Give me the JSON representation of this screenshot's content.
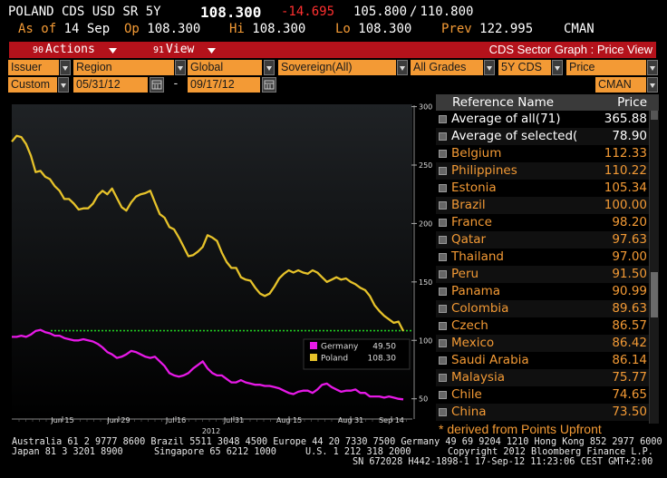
{
  "header": {
    "ticker": "POLAND CDS USD SR 5Y",
    "last": "108.300",
    "change": "-14.695",
    "bid": "105.800",
    "ask": "110.800",
    "asof_label": "As of",
    "asof_date": "14 Sep",
    "op_label": "Op",
    "op_value": "108.300",
    "hi_label": "Hi",
    "hi_value": "108.300",
    "lo_label": "Lo",
    "lo_value": "108.300",
    "prev_label": "Prev",
    "prev_value": "122.995",
    "source": "CMAN"
  },
  "actionbar": {
    "actions_num": "90",
    "actions_label": "Actions",
    "view_num": "91",
    "view_label": "View",
    "title": "CDS Sector Graph : Price View"
  },
  "selectors": {
    "issuer": "Issuer",
    "region": "Region",
    "global": "Global",
    "sovereign": "Sovereign(All)",
    "grades": "All Grades",
    "tenor": "5Y CDS",
    "price": "Price",
    "custom": "Custom",
    "start_date": "05/31/12",
    "date_sep": "-",
    "end_date": "09/17/12",
    "source": "CMAN"
  },
  "table": {
    "col_name": "Reference Name",
    "col_price": "Price",
    "rows": [
      {
        "name": "Average of all(71)",
        "price": "365.88",
        "color": "#ffffff"
      },
      {
        "name": "Average of selected(",
        "price": "78.90",
        "color": "#ffffff"
      },
      {
        "name": "Belgium",
        "price": "112.33",
        "color": "#f39a35"
      },
      {
        "name": "Philippines",
        "price": "110.22",
        "color": "#f39a35"
      },
      {
        "name": "Estonia",
        "price": "105.34",
        "color": "#f39a35"
      },
      {
        "name": "Brazil",
        "price": "100.00",
        "color": "#f39a35"
      },
      {
        "name": "France",
        "price": "98.20",
        "color": "#f39a35"
      },
      {
        "name": "Qatar",
        "price": "97.63",
        "color": "#f39a35"
      },
      {
        "name": "Thailand",
        "price": "97.00",
        "color": "#f39a35"
      },
      {
        "name": "Peru",
        "price": "91.50",
        "color": "#f39a35"
      },
      {
        "name": "Panama",
        "price": "90.99",
        "color": "#f39a35"
      },
      {
        "name": "Colombia",
        "price": "89.63",
        "color": "#f39a35"
      },
      {
        "name": "Czech",
        "price": "86.57",
        "color": "#f39a35"
      },
      {
        "name": "Mexico",
        "price": "86.42",
        "color": "#f39a35"
      },
      {
        "name": "Saudi Arabia",
        "price": "86.14",
        "color": "#f39a35"
      },
      {
        "name": "Malaysia",
        "price": "75.77",
        "color": "#f39a35"
      },
      {
        "name": "Chile",
        "price": "74.65",
        "color": "#f39a35"
      },
      {
        "name": "China",
        "price": "73.50",
        "color": "#f39a35"
      }
    ],
    "note": "* derived from Points Upfront"
  },
  "footer": {
    "line1": "Australia 61 2 9777 8600 Brazil 5511 3048 4500 Europe 44 20 7330 7500 Germany 49 69 9204 1210 Hong Kong 852 2977 6000",
    "line2_left": "Japan 81 3 3201 8900",
    "line2_mid": "Singapore 65 6212 1000",
    "line2_us": "U.S. 1 212 318 2000",
    "line2_right": "Copyright 2012 Bloomberg Finance L.P.",
    "line3": "SN 672028 H442-1898-1 17-Sep-12 11:23:06 CEST GMT+2:00"
  },
  "colors": {
    "orange": "#f39a35",
    "red_bar": "#b4121b",
    "poland": "#e6c22a",
    "germany": "#e619e6",
    "ref_line": "#22cc22"
  },
  "chart_data": {
    "type": "line",
    "x_tick_labels": [
      "Jun 15",
      "Jun 29",
      "Jul 16",
      "Jul 31",
      "Aug 15",
      "Aug 31",
      "Sep 14"
    ],
    "x_year_label": "2012",
    "y_tick_labels": [
      "300",
      "250",
      "200",
      "150",
      "100",
      "50"
    ],
    "ylim": [
      35,
      302
    ],
    "reference_value": 108.3,
    "legend": [
      {
        "name": "Germany",
        "value": "49.50",
        "color": "#e619e6"
      },
      {
        "name": "Poland",
        "value": "108.30",
        "color": "#e6c22a"
      }
    ],
    "series": [
      {
        "name": "Poland",
        "color": "#e6c22a",
        "values": [
          270,
          275,
          274,
          268,
          258,
          244,
          245,
          240,
          238,
          232,
          228,
          221,
          221,
          217,
          212,
          213,
          213,
          217,
          224,
          228,
          225,
          230,
          222,
          214,
          211,
          218,
          223,
          225,
          226,
          228,
          218,
          208,
          205,
          197,
          195,
          188,
          180,
          172,
          173,
          176,
          180,
          190,
          188,
          185,
          175,
          167,
          162,
          162,
          154,
          152,
          151,
          145,
          140,
          138,
          140,
          146,
          153,
          157,
          160,
          158,
          160,
          158,
          157,
          160,
          158,
          154,
          150,
          152,
          154,
          152,
          153,
          150,
          148,
          145,
          143,
          138,
          130,
          125,
          121,
          118,
          115,
          116,
          108
        ]
      },
      {
        "name": "Germany",
        "color": "#e619e6",
        "values": [
          103,
          103,
          104,
          103,
          105,
          108,
          109,
          107,
          106,
          104,
          104,
          102,
          101,
          100,
          100,
          101,
          100,
          99,
          97,
          94,
          90,
          88,
          85,
          86,
          88,
          91,
          90,
          88,
          86,
          85,
          86,
          82,
          78,
          72,
          70,
          69,
          70,
          72,
          76,
          79,
          82,
          76,
          72,
          70,
          70,
          67,
          64,
          64,
          66,
          64,
          63,
          62,
          62,
          61,
          61,
          60,
          59,
          57,
          55,
          54,
          56,
          57,
          57,
          55,
          58,
          62,
          63,
          60,
          58,
          56,
          57,
          57,
          58,
          55,
          55,
          52,
          52,
          52,
          51,
          52,
          51,
          50,
          49.5
        ]
      }
    ]
  }
}
